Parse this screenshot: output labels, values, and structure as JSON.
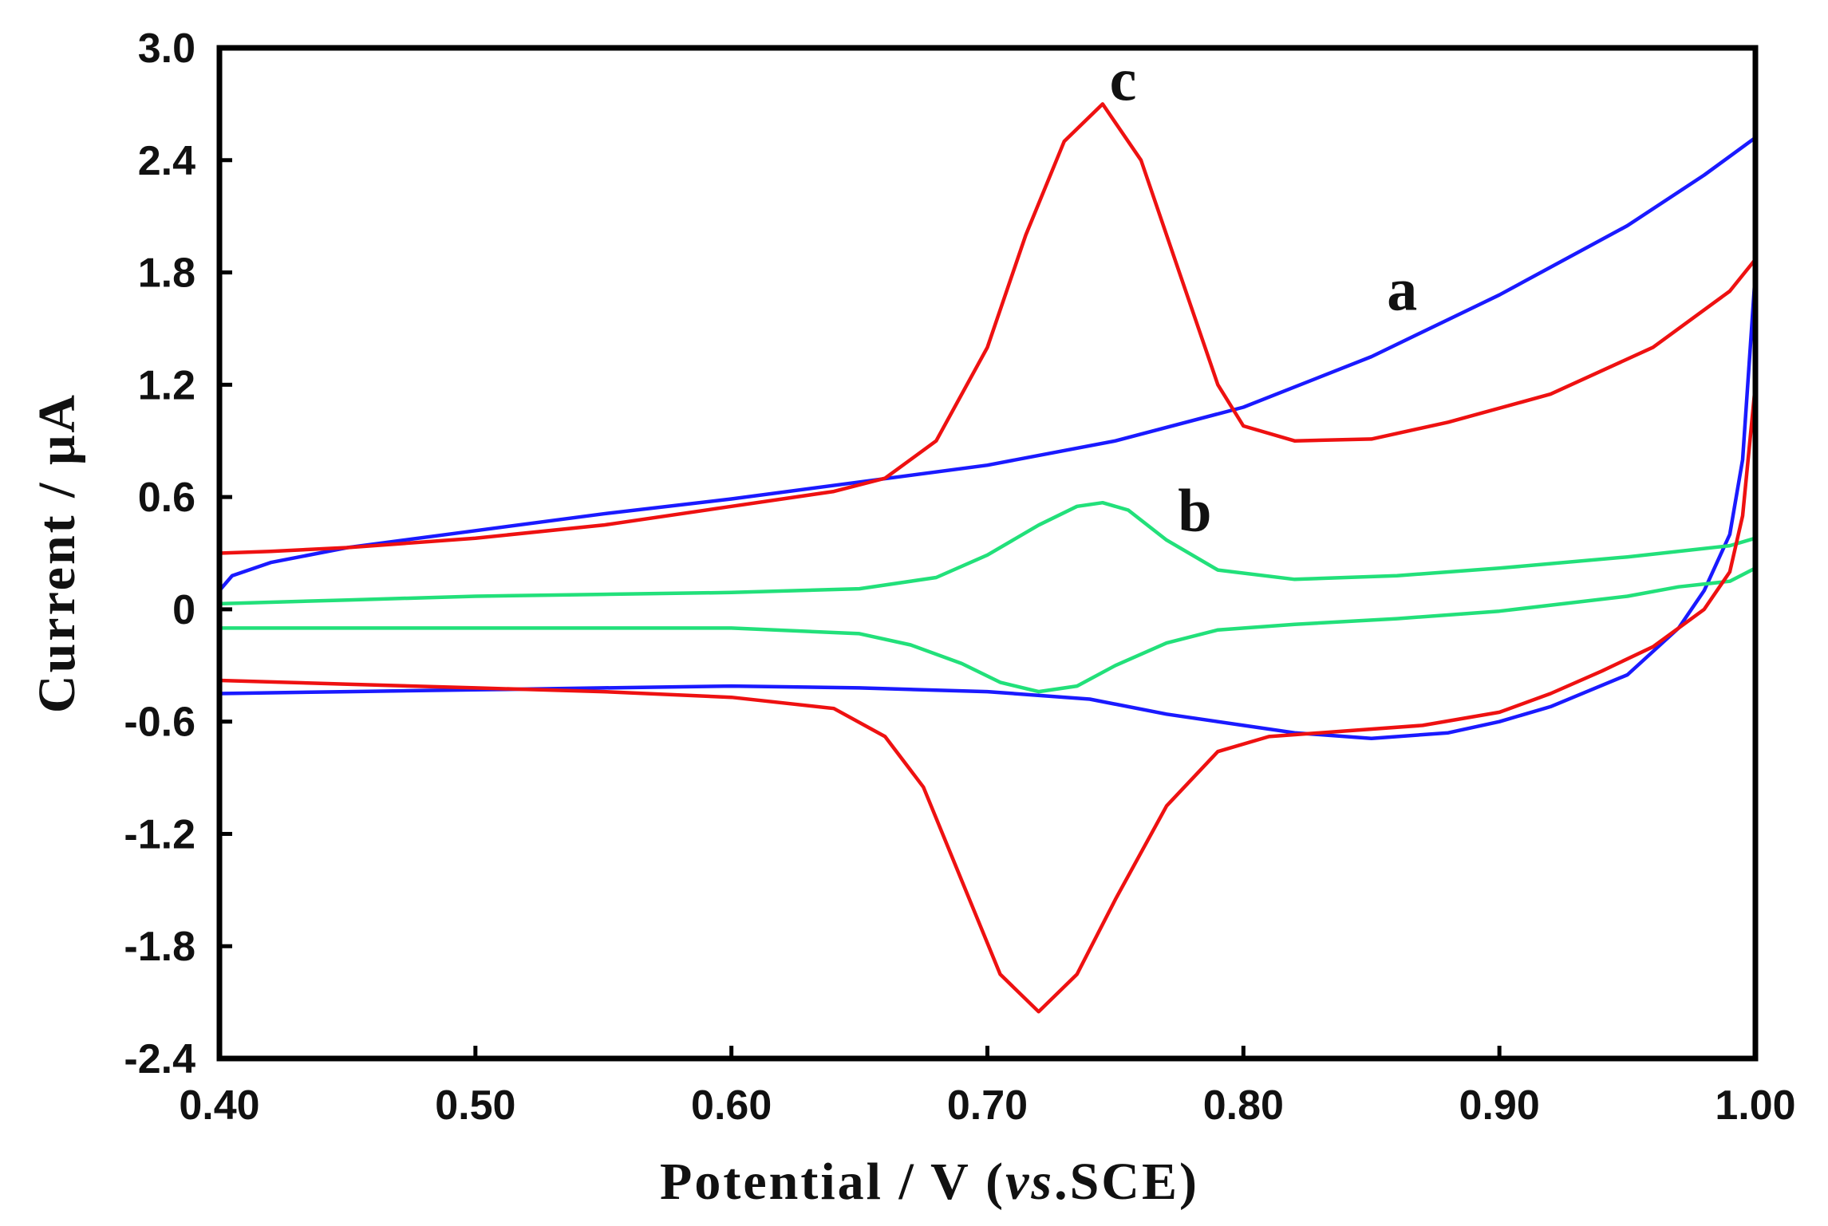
{
  "chart_data": {
    "type": "line",
    "title": "",
    "xlabel": "Potential / V (vs.SCE)",
    "xlabel_parts": {
      "prefix": "Potential / V (",
      "italic": "vs",
      "suffix": ".SCE)"
    },
    "ylabel": "Current / μA",
    "xlim": [
      0.4,
      1.0
    ],
    "ylim": [
      -2.4,
      3.0
    ],
    "x_ticks": [
      0.4,
      0.5,
      0.6,
      0.7,
      0.8,
      0.9,
      1.0
    ],
    "x_tick_labels": [
      "0.40",
      "0.50",
      "0.60",
      "0.70",
      "0.80",
      "0.90",
      "1.00"
    ],
    "y_ticks": [
      -2.4,
      -1.8,
      -1.2,
      -0.6,
      0,
      0.6,
      1.2,
      1.8,
      2.4,
      3.0
    ],
    "y_tick_labels": [
      "-2.4",
      "-1.8",
      "-1.2",
      "-0.6",
      "0",
      "0.6",
      "1.2",
      "1.8",
      "2.4",
      "3.0"
    ],
    "grid": false,
    "series": [
      {
        "name": "a",
        "color": "#1a1aff",
        "label": {
          "text": "a",
          "x": 0.862,
          "y": 1.6
        },
        "x": [
          0.4,
          0.4,
          0.405,
          0.42,
          0.45,
          0.5,
          0.55,
          0.6,
          0.65,
          0.7,
          0.75,
          0.8,
          0.85,
          0.9,
          0.95,
          0.98,
          1.0,
          1.0,
          0.995,
          0.99,
          0.98,
          0.97,
          0.95,
          0.92,
          0.9,
          0.88,
          0.85,
          0.82,
          0.8,
          0.77,
          0.74,
          0.7,
          0.65,
          0.6,
          0.55,
          0.5,
          0.45,
          0.4,
          0.4
        ],
        "y": [
          -0.2,
          0.1,
          0.18,
          0.25,
          0.33,
          0.42,
          0.51,
          0.59,
          0.68,
          0.77,
          0.9,
          1.08,
          1.35,
          1.68,
          2.05,
          2.32,
          2.52,
          1.8,
          0.8,
          0.4,
          0.1,
          -0.1,
          -0.35,
          -0.52,
          -0.6,
          -0.66,
          -0.69,
          -0.66,
          -0.62,
          -0.56,
          -0.48,
          -0.44,
          -0.42,
          -0.41,
          -0.42,
          -0.43,
          -0.44,
          -0.45,
          -0.2
        ]
      },
      {
        "name": "b",
        "color": "#22e07a",
        "label": {
          "text": "b",
          "x": 0.781,
          "y": 0.42
        },
        "x": [
          0.4,
          0.45,
          0.5,
          0.55,
          0.6,
          0.65,
          0.68,
          0.7,
          0.72,
          0.735,
          0.745,
          0.755,
          0.77,
          0.79,
          0.82,
          0.86,
          0.9,
          0.95,
          0.99,
          1.0,
          1.0,
          0.99,
          0.97,
          0.95,
          0.9,
          0.86,
          0.82,
          0.79,
          0.77,
          0.75,
          0.735,
          0.72,
          0.705,
          0.69,
          0.67,
          0.65,
          0.6,
          0.55,
          0.5,
          0.45,
          0.4,
          0.4
        ],
        "y": [
          0.03,
          0.05,
          0.07,
          0.08,
          0.09,
          0.11,
          0.17,
          0.29,
          0.45,
          0.55,
          0.57,
          0.53,
          0.37,
          0.21,
          0.16,
          0.18,
          0.22,
          0.28,
          0.34,
          0.38,
          0.22,
          0.15,
          0.12,
          0.07,
          -0.01,
          -0.05,
          -0.08,
          -0.11,
          -0.18,
          -0.3,
          -0.41,
          -0.44,
          -0.39,
          -0.29,
          -0.19,
          -0.13,
          -0.1,
          -0.1,
          -0.1,
          -0.1,
          -0.1,
          0.03
        ]
      },
      {
        "name": "c",
        "color": "#ee1111",
        "label": {
          "text": "c",
          "x": 0.753,
          "y": 2.72
        },
        "x": [
          0.4,
          0.4,
          0.42,
          0.45,
          0.5,
          0.55,
          0.6,
          0.64,
          0.66,
          0.68,
          0.7,
          0.715,
          0.73,
          0.745,
          0.76,
          0.775,
          0.79,
          0.8,
          0.82,
          0.85,
          0.88,
          0.92,
          0.96,
          0.99,
          1.0,
          1.0,
          0.995,
          0.99,
          0.98,
          0.96,
          0.94,
          0.92,
          0.9,
          0.87,
          0.84,
          0.81,
          0.79,
          0.77,
          0.75,
          0.735,
          0.72,
          0.705,
          0.69,
          0.675,
          0.66,
          0.64,
          0.6,
          0.55,
          0.5,
          0.45,
          0.4,
          0.4
        ],
        "y": [
          0.1,
          0.3,
          0.31,
          0.33,
          0.38,
          0.45,
          0.55,
          0.63,
          0.7,
          0.9,
          1.4,
          2.0,
          2.5,
          2.7,
          2.4,
          1.8,
          1.2,
          0.98,
          0.9,
          0.91,
          1.0,
          1.15,
          1.4,
          1.7,
          1.87,
          1.2,
          0.5,
          0.2,
          0.0,
          -0.2,
          -0.33,
          -0.45,
          -0.55,
          -0.62,
          -0.65,
          -0.68,
          -0.76,
          -1.05,
          -1.55,
          -1.95,
          -2.15,
          -1.95,
          -1.45,
          -0.95,
          -0.68,
          -0.53,
          -0.47,
          -0.44,
          -0.42,
          -0.4,
          -0.38,
          0.1
        ]
      }
    ]
  }
}
